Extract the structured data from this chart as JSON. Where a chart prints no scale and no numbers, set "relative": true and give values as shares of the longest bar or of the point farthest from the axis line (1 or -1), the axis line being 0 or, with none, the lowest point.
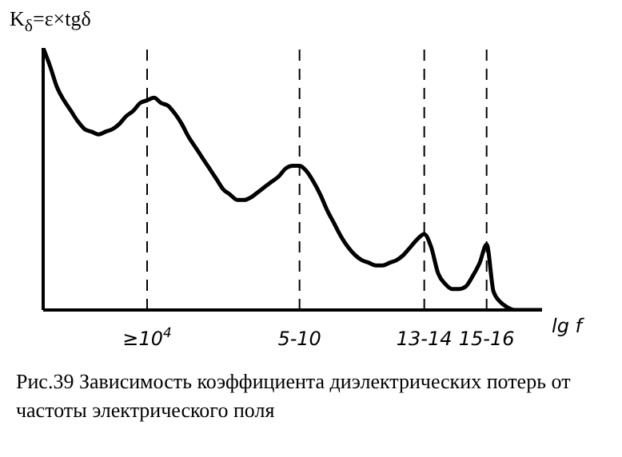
{
  "chart_data": {
    "type": "line",
    "relative": true,
    "ylabel": "K$_{δ}$=ε×tgδ",
    "xlabel": "lg f",
    "categories": [
      null,
      null,
      null,
      null,
      null,
      null,
      null,
      null,
      null,
      null,
      null,
      null,
      null,
      null,
      null,
      "≥10$^{4}$",
      null,
      null,
      null,
      null,
      null,
      null,
      null,
      null,
      null,
      null,
      null,
      null,
      null,
      null,
      null,
      null,
      null,
      null,
      null,
      null,
      null,
      "5-10",
      null,
      null,
      null,
      null,
      null,
      null,
      null,
      null,
      null,
      null,
      null,
      null,
      null,
      null,
      null,
      null,
      null,
      "13-14",
      null,
      null,
      null,
      null,
      null,
      null,
      null,
      null,
      "15-16",
      null,
      null,
      null,
      null,
      null,
      null,
      null,
      null
    ],
    "series": [
      {
        "color": "#000000",
        "values": [
          1.0,
          0.93,
          0.85,
          0.8,
          0.76,
          0.72,
          0.69,
          0.68,
          0.67,
          0.68,
          0.69,
          0.71,
          0.74,
          0.76,
          0.79,
          0.8,
          0.81,
          0.79,
          0.78,
          0.75,
          0.71,
          0.66,
          0.62,
          0.58,
          0.54,
          0.5,
          0.46,
          0.44,
          0.42,
          0.42,
          0.43,
          0.45,
          0.47,
          0.49,
          0.51,
          0.54,
          0.55,
          0.55,
          0.53,
          0.49,
          0.44,
          0.38,
          0.33,
          0.28,
          0.24,
          0.21,
          0.19,
          0.18,
          0.17,
          0.17,
          0.18,
          0.19,
          0.21,
          0.24,
          0.27,
          0.29,
          0.24,
          0.14,
          0.1,
          0.08,
          0.08,
          0.09,
          0.13,
          0.18,
          0.25,
          0.07,
          0.03,
          0.01,
          0,
          0,
          0,
          0,
          0
        ]
      }
    ],
    "ref_lines": [
      {
        "axis": "x",
        "value": "≥10$^{4}$",
        "line_style": "dashed"
      },
      {
        "axis": "x",
        "value": "5-10",
        "line_style": "dashed"
      },
      {
        "axis": "x",
        "value": "13-14",
        "line_style": "dashed"
      },
      {
        "axis": "x",
        "value": "15-16",
        "line_style": "dashed"
      }
    ],
    "marker": "none",
    "line_style": "solid",
    "grid": false,
    "legend": false,
    "annotations": [
      "Рис.39 Зависимость коэффициента диэлектрических потерь от частоты электрического поля"
    ]
  }
}
